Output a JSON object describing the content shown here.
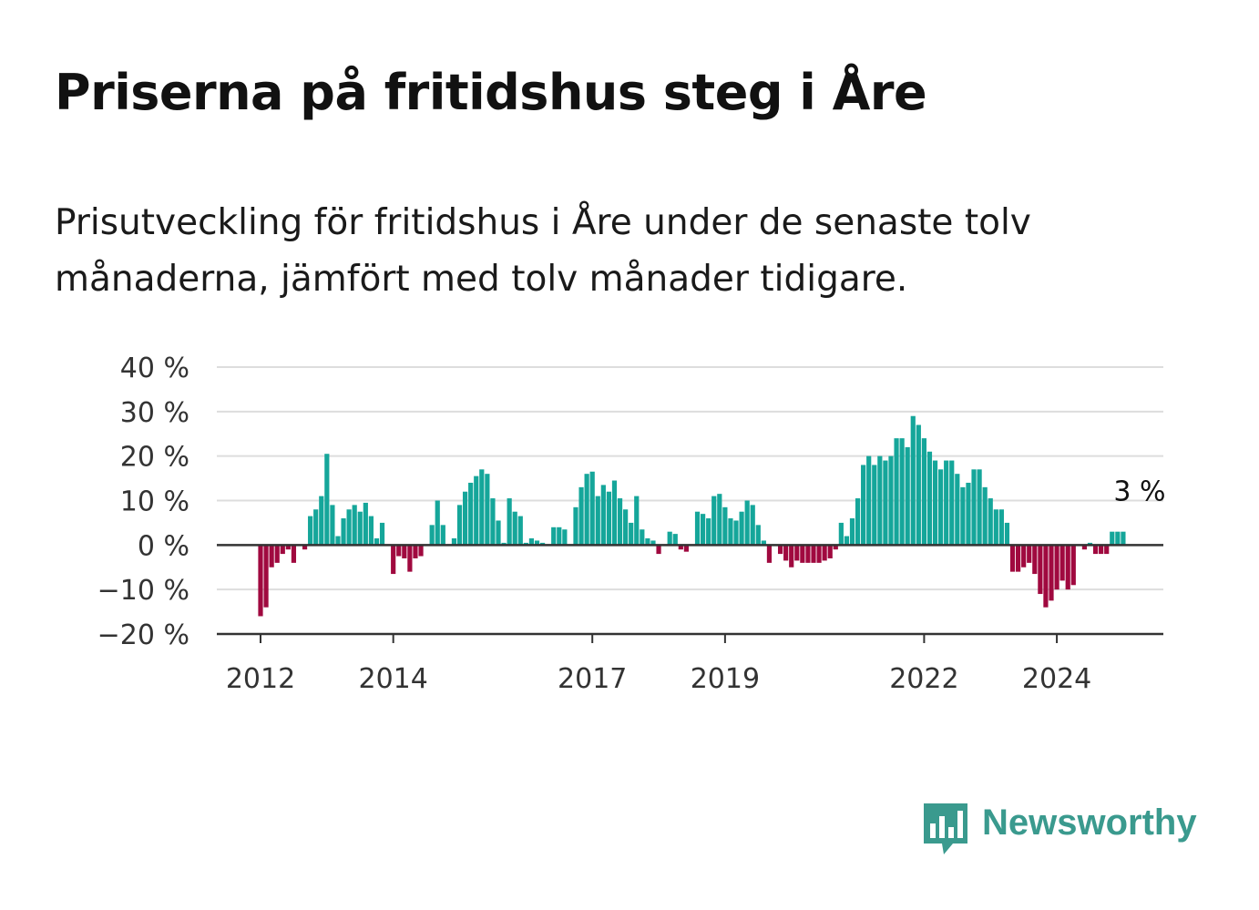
{
  "title": "Priserna på fritidshus steg i Åre",
  "subtitle": "Prisutveckling för fritidshus i Åre under de senaste tolv månaderna, jämfört med tolv månader tidigare.",
  "brand": {
    "name": "Newsworthy",
    "icon": "bar-chart-speech-bubble-icon",
    "color": "#3a9a8e"
  },
  "colors": {
    "positive": "#15a69a",
    "negative": "#a0093f",
    "grid": "#dddddd",
    "axis": "#333333"
  },
  "chart_data": {
    "type": "bar",
    "title": "",
    "xlabel": "",
    "ylabel": "",
    "ylim": [
      -20,
      40
    ],
    "yticks": [
      -20,
      -10,
      0,
      10,
      20,
      30,
      40
    ],
    "ytick_labels": [
      "−20 %",
      "−10 %",
      "0 %",
      "10 %",
      "20 %",
      "30 %",
      "40 %"
    ],
    "xtick_labels": [
      "2012",
      "2014",
      "2017",
      "2019",
      "2022",
      "2024"
    ],
    "xtick_positions": [
      "2012-01",
      "2014-01",
      "2017-01",
      "2019-01",
      "2022-01",
      "2024-01"
    ],
    "x_start": "2012-01",
    "grid": true,
    "annotation": {
      "text": "3 %",
      "at": "2025-01",
      "value": 3
    },
    "series": [
      {
        "values": [
          -16,
          -14,
          -5,
          -4,
          -2,
          -1,
          -4,
          0,
          -1,
          6.5,
          8,
          11,
          20.5,
          9,
          2,
          6,
          8,
          9,
          7.5,
          9.5,
          6.5,
          1.5,
          5,
          0,
          -6.5,
          -2.5,
          -3,
          -6,
          -3,
          -2.5,
          0,
          4.5,
          10,
          4.5,
          0,
          1.5,
          9,
          12,
          14,
          15.5,
          17,
          16,
          10.5,
          5.5,
          0.5,
          10.5,
          7.5,
          6.5,
          0.5,
          1.5,
          1,
          0.5,
          0,
          4,
          4,
          3.5,
          0,
          8.5,
          13,
          16,
          16.5,
          11,
          13.5,
          12,
          14.5,
          10.5,
          8,
          5,
          11,
          3.5,
          1.5,
          1,
          -2,
          0,
          3,
          2.5,
          -1,
          -1.5,
          0,
          7.5,
          7,
          6,
          11,
          11.5,
          8.5,
          6,
          5.5,
          7.5,
          10,
          9,
          4.5,
          1,
          -4,
          0,
          -2,
          -3.5,
          -5,
          -3.5,
          -4,
          -4,
          -4,
          -4,
          -3.5,
          -3,
          -1,
          5,
          2,
          6,
          10.5,
          18,
          20,
          18,
          20,
          19,
          20,
          24,
          24,
          22,
          29,
          27,
          24,
          21,
          19,
          17,
          19,
          19,
          16,
          13,
          14,
          17,
          17,
          13,
          10.5,
          8,
          8,
          5,
          -6,
          -6,
          -5,
          -4,
          -6.5,
          -11,
          -14,
          -12.5,
          -10,
          -8,
          -10,
          -9,
          0,
          -1,
          0.5,
          -2,
          -2,
          -2,
          3,
          3,
          3
        ]
      }
    ]
  }
}
